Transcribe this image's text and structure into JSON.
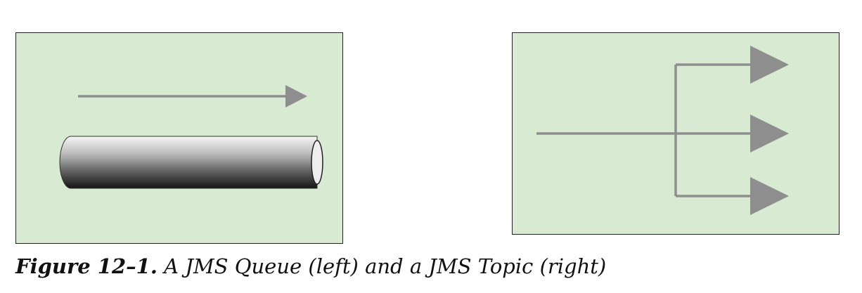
{
  "figure": {
    "caption_label": "Figure 12–1.",
    "caption_text": " A JMS Queue (left) and a JMS Topic (right)"
  },
  "colors": {
    "panel_background": "#d8ead2",
    "panel_border": "#222222",
    "arrow": "#8e8e8e",
    "pipe_light": "#f5f5f5",
    "pipe_dark": "#1a1a1a"
  },
  "diagrams": {
    "queue": {
      "kind": "queue",
      "message_direction": "left-to-right"
    },
    "topic": {
      "kind": "topic",
      "subscriber_count": 3
    }
  }
}
